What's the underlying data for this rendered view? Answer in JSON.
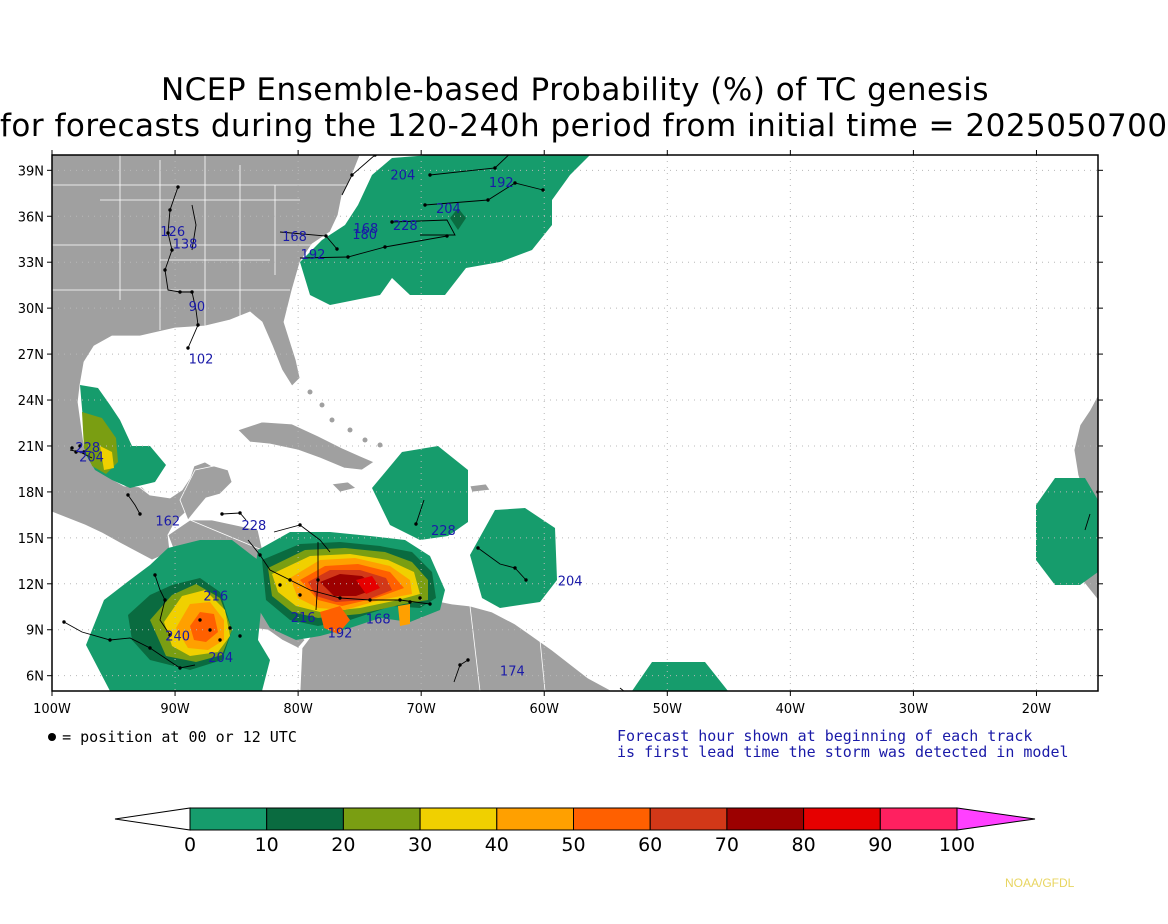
{
  "title": {
    "line1": "NCEP Ensemble-based Probability (%) of TC genesis",
    "line2": "for forecasts during the 120-240h period from initial time = 2025050700"
  },
  "map": {
    "lon_range": [
      -100,
      -15
    ],
    "lat_range": [
      5,
      40
    ],
    "lat_labels": [
      "39N",
      "36N",
      "33N",
      "30N",
      "27N",
      "24N",
      "21N",
      "18N",
      "15N",
      "12N",
      "9N",
      "6N"
    ],
    "lat_values": [
      39,
      36,
      33,
      30,
      27,
      24,
      21,
      18,
      15,
      12,
      9,
      6
    ],
    "lon_labels": [
      "100W",
      "90W",
      "80W",
      "70W",
      "60W",
      "50W",
      "40W",
      "30W",
      "20W"
    ],
    "lon_values": [
      -100,
      -90,
      -80,
      -70,
      -60,
      -50,
      -40,
      -30,
      -20
    ],
    "colors": {
      "ocean": "#ffffff",
      "land": "#a0a0a0",
      "border": "#ffffff",
      "frame": "#000000"
    },
    "track_labels": [
      {
        "text": "204",
        "lon": -72.5,
        "lat": 38.4
      },
      {
        "text": "192",
        "lon": -64.5,
        "lat": 37.9
      },
      {
        "text": "204",
        "lon": -68.8,
        "lat": 36.2
      },
      {
        "text": "126",
        "lon": -91.2,
        "lat": 34.7
      },
      {
        "text": "138",
        "lon": -90.2,
        "lat": 33.9
      },
      {
        "text": "168",
        "lon": -81.3,
        "lat": 34.4
      },
      {
        "text": "180",
        "lon": -75.6,
        "lat": 34.5
      },
      {
        "text": "168",
        "lon": -75.5,
        "lat": 34.9
      },
      {
        "text": "228",
        "lon": -72.3,
        "lat": 35.1
      },
      {
        "text": "192",
        "lon": -79.8,
        "lat": 33.2
      },
      {
        "text": "90",
        "lon": -88.9,
        "lat": 29.8
      },
      {
        "text": "102",
        "lon": -88.9,
        "lat": 26.4
      },
      {
        "text": "228",
        "lon": -98.1,
        "lat": 20.6
      },
      {
        "text": "204",
        "lon": -97.8,
        "lat": 20.0
      },
      {
        "text": "162",
        "lon": -91.6,
        "lat": 15.8
      },
      {
        "text": "228",
        "lon": -84.6,
        "lat": 15.5
      },
      {
        "text": "228",
        "lon": -69.2,
        "lat": 15.2
      },
      {
        "text": "204",
        "lon": -58.9,
        "lat": 11.9
      },
      {
        "text": "216",
        "lon": -87.7,
        "lat": 10.9
      },
      {
        "text": "216",
        "lon": -80.6,
        "lat": 9.5
      },
      {
        "text": "192",
        "lon": -77.6,
        "lat": 8.5
      },
      {
        "text": "168",
        "lon": -74.5,
        "lat": 9.4
      },
      {
        "text": "240",
        "lon": -90.8,
        "lat": 8.3
      },
      {
        "text": "204",
        "lon": -87.3,
        "lat": 6.9
      },
      {
        "text": "174",
        "lon": -63.6,
        "lat": 6.0
      }
    ]
  },
  "chart_data": {
    "type": "heatmap",
    "title": "NCEP Ensemble-based Probability (%) of TC genesis",
    "subtitle": "for forecasts during the 120-240h period from initial time = 2025050700",
    "xlim": [
      -100,
      -15
    ],
    "ylim": [
      5,
      40
    ],
    "colorbar": {
      "ticks": [
        "0",
        "10",
        "20",
        "30",
        "40",
        "50",
        "60",
        "70",
        "80",
        "90",
        "100"
      ],
      "colors": [
        "#169c6c",
        "#0a6b40",
        "#7a9e12",
        "#f0d000",
        "#ffa000",
        "#ff6000",
        "#d23818",
        "#9c0000",
        "#e60000",
        "#ff2060"
      ],
      "below_color": "#ffffff",
      "above_color": "#ff40ff"
    },
    "regions": [
      {
        "name": "mid-atlantic",
        "level": 10,
        "lon": [
          -78,
          -58
        ],
        "lat": [
          31,
          40
        ]
      },
      {
        "name": "mid-atlantic-core",
        "level": 20,
        "lon": [
          -67.5,
          -66.5
        ],
        "lat": [
          35.3,
          36.3
        ]
      },
      {
        "name": "gulf-mexico-west",
        "level": 10,
        "lon": [
          -98,
          -91
        ],
        "lat": [
          17.5,
          24.5
        ]
      },
      {
        "name": "gulf-mexico-west-core",
        "level": 30,
        "lon": [
          -97.5,
          -94.5
        ],
        "lat": [
          18.5,
          22.5
        ]
      },
      {
        "name": "hispaniola-north",
        "level": 10,
        "lon": [
          -72,
          -64
        ],
        "lat": [
          13.5,
          21
        ]
      },
      {
        "name": "windward",
        "level": 10,
        "lon": [
          -67,
          -60
        ],
        "lat": [
          10,
          15.5
        ]
      },
      {
        "name": "africa-coast",
        "level": 10,
        "lon": [
          -21,
          -16
        ],
        "lat": [
          12.5,
          18
        ]
      },
      {
        "name": "south-caribbean-tail",
        "level": 10,
        "lon": [
          -53,
          -45
        ],
        "lat": [
          5,
          7
        ]
      },
      {
        "name": "east-pacific",
        "level": 10,
        "lon": [
          -97,
          -82
        ],
        "lat": [
          5,
          15
        ]
      },
      {
        "name": "east-pacific-peak",
        "level": 60,
        "lon": [
          -89,
          -85
        ],
        "lat": [
          8,
          11.5
        ]
      },
      {
        "name": "caribbean",
        "level": 10,
        "lon": [
          -83,
          -64
        ],
        "lat": [
          8,
          15.5
        ]
      },
      {
        "name": "caribbean-peak",
        "level": 80,
        "lon": [
          -77,
          -72
        ],
        "lat": [
          10.5,
          13
        ]
      }
    ]
  },
  "legend": {
    "dot_note": "= position at 00 or 12 UTC",
    "forecast_note_line1": "Forecast hour shown at beginning of each track",
    "forecast_note_line2": "is first lead time the storm was detected in model"
  },
  "credit": "NOAA/GFDL"
}
